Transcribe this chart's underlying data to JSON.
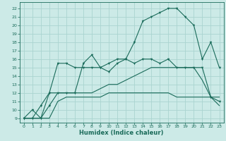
{
  "title": "",
  "xlabel": "Humidex (Indice chaleur)",
  "bg_color": "#cceae7",
  "grid_color": "#aad4d0",
  "line_color": "#1a6b5a",
  "xlim": [
    -0.5,
    23.5
  ],
  "ylim": [
    8.5,
    22.7
  ],
  "yticks": [
    9,
    10,
    11,
    12,
    13,
    14,
    15,
    16,
    17,
    18,
    19,
    20,
    21,
    22
  ],
  "xticks": [
    0,
    1,
    2,
    3,
    4,
    5,
    6,
    7,
    8,
    9,
    10,
    11,
    12,
    13,
    14,
    15,
    16,
    17,
    18,
    19,
    20,
    21,
    22,
    23
  ],
  "series1": [
    9,
    10,
    9,
    10.5,
    12,
    12,
    12,
    15.5,
    16.5,
    15,
    14.5,
    15.5,
    16,
    18,
    20.5,
    21,
    21.5,
    22,
    22,
    21,
    20,
    16,
    18,
    15
  ],
  "series2": [
    9,
    9,
    10.5,
    12,
    15.5,
    15.5,
    15,
    15,
    15,
    15,
    15.5,
    16,
    16,
    15.5,
    16,
    16,
    15.5,
    16,
    15,
    15,
    15,
    15,
    11.5,
    11
  ],
  "series3": [
    9,
    9,
    9,
    12,
    12,
    12,
    12,
    12,
    12,
    12.5,
    13,
    13,
    13.5,
    14,
    14.5,
    15,
    15,
    15,
    15,
    15,
    15,
    13.5,
    11.5,
    11.5
  ],
  "series4": [
    9,
    9,
    9,
    9,
    11,
    11.5,
    11.5,
    11.5,
    11.5,
    11.5,
    12,
    12,
    12,
    12,
    12,
    12,
    12,
    12,
    11.5,
    11.5,
    11.5,
    11.5,
    11.5,
    10.5
  ]
}
